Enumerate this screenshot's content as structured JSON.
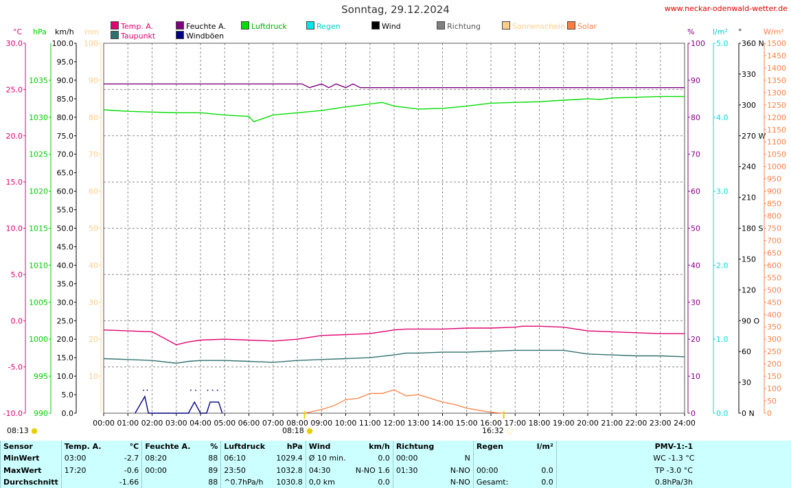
{
  "title": "Sonntag, 29.12.2024",
  "site": "www.neckar-odenwald-wetter.de",
  "legend": [
    {
      "label": "Temp. A.",
      "color": "#e0006f"
    },
    {
      "label": "Taupunkt",
      "color": "#2f6f6f"
    },
    {
      "label": "Feuchte A.",
      "color": "#800080"
    },
    {
      "label": "Windböen",
      "color": "#000080"
    },
    {
      "label": "Luftdruck",
      "color": "#00dd00"
    },
    {
      "label": "Regen",
      "color": "#00e8e8"
    },
    {
      "label": "Wind",
      "color": "#000000"
    },
    {
      "label": "Richtung",
      "color": "#808080"
    },
    {
      "label": "Sonnenschein",
      "color": "#ffcc88"
    },
    {
      "label": "Solar",
      "color": "#ff7f40"
    }
  ],
  "units": {
    "temp": "°C",
    "pressure": "hPa",
    "wind": "km/h",
    "sun": "min",
    "humidity": "%",
    "rain": "l/m²",
    "direction": "°",
    "solar": "W/m²"
  },
  "sun_events": {
    "rise": "08:18",
    "set": "16:32",
    "left": "08:13"
  },
  "chart_data": {
    "type": "line",
    "x_unit": "time of day",
    "xlim": [
      0,
      24
    ],
    "x_ticks": [
      "00:00",
      "01:00",
      "02:00",
      "03:00",
      "04:00",
      "05:00",
      "06:00",
      "07:00",
      "08:00",
      "09:00",
      "10:00",
      "11:00",
      "12:00",
      "13:00",
      "14:00",
      "15:00",
      "16:00",
      "17:00",
      "18:00",
      "19:00",
      "20:00",
      "21:00",
      "22:00",
      "23:00",
      "24:00"
    ],
    "axes": {
      "temp": {
        "ylim": [
          -10,
          30
        ],
        "ticks": [
          -10,
          -5,
          0,
          5,
          10,
          15,
          20,
          25,
          30
        ],
        "labels": [
          "-10.0",
          "-5.0",
          "0.0",
          "5.0",
          "10.0",
          "15.0",
          "20.0",
          "25.0",
          "30.0"
        ],
        "color": "#e0006f"
      },
      "pressure": {
        "ylim": [
          990,
          1040
        ],
        "ticks": [
          990,
          995,
          1000,
          1005,
          1010,
          1015,
          1020,
          1025,
          1030,
          1035
        ],
        "labels": [
          "990",
          "995",
          "1000",
          "1005",
          "1010",
          "1015",
          "1020",
          "1025",
          "1030",
          "1035"
        ],
        "color": "#00cc00"
      },
      "wind": {
        "ylim": [
          0,
          100
        ],
        "ticks": [
          0,
          5,
          10,
          15,
          20,
          25,
          30,
          35,
          40,
          45,
          50,
          55,
          60,
          65,
          70,
          75,
          80,
          85,
          90,
          95,
          100
        ],
        "labels": [
          "0.0",
          "5.0",
          "10.0",
          "15.0",
          "20.0",
          "25.0",
          "30.0",
          "35.0",
          "40.0",
          "45.0",
          "50.0",
          "55.0",
          "60.0",
          "65.0",
          "70.0",
          "75.0",
          "80.0",
          "85.0",
          "90.0",
          "95.0",
          "100.0"
        ],
        "color": "#000000"
      },
      "sun": {
        "ylim": [
          0,
          100
        ],
        "ticks": [
          10,
          20,
          30,
          40,
          50,
          60,
          70,
          80,
          90,
          100
        ],
        "labels": [
          "10",
          "20",
          "30",
          "40",
          "50",
          "60",
          "70",
          "80",
          "90",
          "100"
        ],
        "color": "#ffcc88"
      },
      "humidity": {
        "ylim": [
          0,
          100
        ],
        "ticks": [
          0,
          10,
          20,
          30,
          40,
          50,
          60,
          70,
          80,
          90,
          100
        ],
        "labels": [
          "0",
          "10",
          "20",
          "30",
          "40",
          "50",
          "60",
          "70",
          "80",
          "90",
          "100"
        ],
        "color": "#800080"
      },
      "rain": {
        "ylim": [
          0,
          5
        ],
        "ticks": [
          0,
          1,
          2,
          3,
          4,
          5
        ],
        "labels": [
          "0.0",
          "1.0",
          "2.0",
          "3.0",
          "4.0",
          "5.0"
        ],
        "color": "#00dddd"
      },
      "direction": {
        "ylim": [
          0,
          360
        ],
        "ticks": [
          0,
          30,
          60,
          90,
          120,
          150,
          180,
          210,
          240,
          270,
          300,
          330,
          360
        ],
        "labels": [
          "0 N",
          "30",
          "60",
          "90 O",
          "120",
          "150",
          "180 S",
          "210",
          "240",
          "270 W",
          "300",
          "330",
          "360 N"
        ],
        "color": "#000000"
      },
      "solar": {
        "ylim": [
          0,
          1500
        ],
        "ticks": [
          0,
          50,
          100,
          150,
          200,
          250,
          300,
          350,
          400,
          450,
          500,
          550,
          600,
          650,
          700,
          750,
          800,
          850,
          900,
          950,
          1000,
          1050,
          1100,
          1150,
          1200,
          1250,
          1300,
          1350,
          1400,
          1450,
          1500
        ],
        "labels": [
          "0",
          "50",
          "100",
          "150",
          "200",
          "250",
          "300",
          "350",
          "400",
          "450",
          "500",
          "550",
          "600",
          "650",
          "700",
          "750",
          "800",
          "850",
          "900",
          "950",
          "1000",
          "1050",
          "1100",
          "1150",
          "1200",
          "1250",
          "1300",
          "1350",
          "1400",
          "1450",
          "1500"
        ],
        "color": "#ff7f40"
      }
    },
    "series": [
      {
        "name": "Temp. A.",
        "axis": "temp",
        "color": "#e0006f",
        "x": [
          0,
          1,
          2,
          3,
          3.5,
          4,
          5,
          6,
          7,
          8,
          9,
          10,
          11,
          12,
          12.5,
          13,
          14,
          15,
          16,
          17,
          17.3,
          18,
          19,
          20,
          21,
          22,
          23,
          24
        ],
        "y": [
          -1.0,
          -1.1,
          -1.2,
          -2.6,
          -2.3,
          -2.1,
          -2.0,
          -2.1,
          -2.2,
          -2.0,
          -1.6,
          -1.5,
          -1.4,
          -1.0,
          -0.9,
          -0.9,
          -0.9,
          -0.8,
          -0.8,
          -0.7,
          -0.6,
          -0.6,
          -0.7,
          -1.1,
          -1.2,
          -1.3,
          -1.4,
          -1.4
        ]
      },
      {
        "name": "Taupunkt",
        "axis": "temp",
        "color": "#2f6f6f",
        "x": [
          0,
          1,
          2,
          3,
          3.5,
          4,
          5,
          6,
          7,
          8,
          9,
          10,
          11,
          12,
          12.5,
          13,
          14,
          15,
          16,
          17,
          18,
          19,
          20,
          21,
          22,
          23,
          24
        ],
        "y": [
          -4.1,
          -4.2,
          -4.3,
          -4.6,
          -4.4,
          -4.3,
          -4.3,
          -4.4,
          -4.5,
          -4.3,
          -4.2,
          -4.1,
          -4.0,
          -3.7,
          -3.5,
          -3.5,
          -3.4,
          -3.4,
          -3.3,
          -3.2,
          -3.2,
          -3.2,
          -3.6,
          -3.7,
          -3.8,
          -3.8,
          -3.9
        ]
      },
      {
        "name": "Feuchte A.",
        "axis": "humidity",
        "color": "#800080",
        "x": [
          0,
          8.2,
          8.5,
          9,
          9.3,
          9.6,
          10,
          10.3,
          10.6,
          11,
          24
        ],
        "y": [
          89,
          89,
          88,
          89,
          88,
          89,
          88,
          89,
          88,
          88,
          88
        ]
      },
      {
        "name": "Luftdruck",
        "axis": "pressure",
        "color": "#00dd00",
        "x": [
          0,
          1,
          2,
          3,
          4,
          5,
          6,
          6.2,
          7,
          8,
          9,
          10,
          11,
          11.5,
          12,
          13,
          14,
          15,
          16,
          17,
          18,
          19,
          20,
          20.5,
          21,
          22,
          23,
          24
        ],
        "y": [
          1031.0,
          1030.8,
          1030.7,
          1030.6,
          1030.6,
          1030.3,
          1030.1,
          1029.4,
          1030.3,
          1030.6,
          1030.9,
          1031.4,
          1031.8,
          1032.0,
          1031.5,
          1031.1,
          1031.2,
          1031.5,
          1031.9,
          1032.0,
          1032.1,
          1032.3,
          1032.5,
          1032.4,
          1032.6,
          1032.7,
          1032.8,
          1032.8
        ]
      },
      {
        "name": "Windböen",
        "axis": "wind",
        "color": "#000080",
        "x": [
          1.3,
          1.7,
          1.85,
          2.0,
          3.5,
          3.75,
          4.0,
          4.25,
          4.4,
          4.75,
          4.9
        ],
        "y": [
          0,
          4.5,
          0,
          0,
          0,
          3.0,
          0,
          0,
          3.0,
          3.0,
          0
        ]
      },
      {
        "name": "Solar",
        "axis": "solar",
        "color": "#ff7f40",
        "x": [
          8.3,
          9,
          9.5,
          10,
          10.5,
          11,
          11.5,
          12,
          12.5,
          13,
          13.5,
          14,
          14.5,
          15,
          15.5,
          16,
          16.5
        ],
        "y": [
          0,
          15,
          30,
          55,
          60,
          80,
          80,
          95,
          70,
          75,
          60,
          45,
          35,
          20,
          12,
          4,
          0
        ]
      }
    ]
  },
  "stats": {
    "headers": [
      "Sensor",
      "Temp. A.",
      "°C",
      "Feuchte A.",
      "%",
      "Luftdruck",
      "hPa",
      "Wind",
      "km/h",
      "Richtung",
      "Regen",
      "l/m²",
      "PMV-1:-1"
    ],
    "rows": [
      [
        "MinWert",
        "03:00",
        "-2.7",
        "08:20",
        "88",
        "06:10",
        "1029.4",
        "Ø 10 min.",
        "0.0",
        "00:00",
        "N",
        "",
        "",
        "WC -1.3 °C"
      ],
      [
        "MaxWert",
        "17:20",
        "-0.6",
        "00:00",
        "89",
        "23:50",
        "1032.8",
        "04:30",
        "N-NO 1.6",
        "01:30",
        "N-NO",
        "00:00",
        "0.0",
        "TP -3.0 °C"
      ],
      [
        "Durchschnitt",
        "",
        "-1.66",
        "",
        "88",
        "^0.7hPa/h",
        "1030.8",
        "0,0 km",
        "0.0",
        "",
        "N-NO",
        "Gesamt:",
        "0.0",
        "0.8hPa/3h"
      ]
    ]
  }
}
